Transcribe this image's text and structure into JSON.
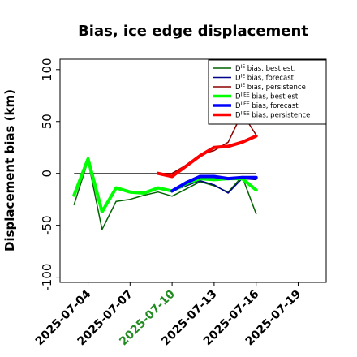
{
  "chart_data": {
    "type": "line",
    "title": "Bias, ice edge displacement",
    "xlabel": "",
    "ylabel": "Displacement bias (km)",
    "ylim": [
      -105,
      110
    ],
    "xlim": [
      "2025-07-02",
      "2025-07-21"
    ],
    "yticks": [
      -100,
      -50,
      0,
      50,
      100
    ],
    "ytick_labels": [
      "-100",
      "-50",
      "0",
      "50",
      "100"
    ],
    "xticks": [
      "2025-07-04",
      "2025-07-07",
      "2025-07-10",
      "2025-07-13",
      "2025-07-16",
      "2025-07-19"
    ],
    "highlighted_xtick": "2025-07-10",
    "highlight_color": "#228b22",
    "zero_line": true,
    "grid": false,
    "legend_position": "top-right",
    "series": [
      {
        "name_prefix": "D",
        "name_sup": "IE",
        "name_suffix": " bias, best est.",
        "color": "#006400",
        "width": 1.5,
        "points": [
          [
            "2025-07-03",
            -30
          ],
          [
            "2025-07-04",
            12
          ],
          [
            "2025-07-05",
            -54
          ],
          [
            "2025-07-06",
            -27
          ],
          [
            "2025-07-07",
            -25
          ],
          [
            "2025-07-08",
            -21
          ],
          [
            "2025-07-09",
            -18
          ],
          [
            "2025-07-10",
            -22
          ],
          [
            "2025-07-11",
            -15
          ],
          [
            "2025-07-12",
            -8
          ],
          [
            "2025-07-13",
            -12
          ],
          [
            "2025-07-14",
            -18
          ],
          [
            "2025-07-15",
            -3
          ],
          [
            "2025-07-16",
            -39
          ]
        ]
      },
      {
        "name_prefix": "D",
        "name_sup": "IE",
        "name_suffix": " bias, forecast",
        "color": "#00008b",
        "width": 1.5,
        "points": [
          [
            "2025-07-10",
            -17
          ],
          [
            "2025-07-11",
            -12
          ],
          [
            "2025-07-12",
            -7
          ],
          [
            "2025-07-13",
            -11
          ],
          [
            "2025-07-14",
            -19
          ],
          [
            "2025-07-15",
            -5
          ],
          [
            "2025-07-16",
            -6
          ]
        ]
      },
      {
        "name_prefix": "D",
        "name_sup": "IE",
        "name_suffix": " bias, persistence",
        "color": "#8b0000",
        "width": 1.5,
        "points": [
          [
            "2025-07-09",
            0
          ],
          [
            "2025-07-10",
            0
          ],
          [
            "2025-07-11",
            8
          ],
          [
            "2025-07-12",
            18
          ],
          [
            "2025-07-13",
            22
          ],
          [
            "2025-07-14",
            30
          ],
          [
            "2025-07-15",
            58
          ],
          [
            "2025-07-16",
            37
          ]
        ]
      },
      {
        "name_prefix": "D",
        "name_sup": "IIEE",
        "name_suffix": " bias, best est.",
        "color": "#00ff00",
        "width": 4,
        "points": [
          [
            "2025-07-03",
            -21
          ],
          [
            "2025-07-04",
            14
          ],
          [
            "2025-07-05",
            -37
          ],
          [
            "2025-07-06",
            -14
          ],
          [
            "2025-07-07",
            -18
          ],
          [
            "2025-07-08",
            -19
          ],
          [
            "2025-07-09",
            -14
          ],
          [
            "2025-07-10",
            -17
          ],
          [
            "2025-07-11",
            -10
          ],
          [
            "2025-07-12",
            -5
          ],
          [
            "2025-07-13",
            -6
          ],
          [
            "2025-07-14",
            -5
          ],
          [
            "2025-07-15",
            -5
          ],
          [
            "2025-07-16",
            -16
          ]
        ]
      },
      {
        "name_prefix": "D",
        "name_sup": "IIEE",
        "name_suffix": " bias, forecast",
        "color": "#0000ff",
        "width": 4,
        "points": [
          [
            "2025-07-10",
            -17
          ],
          [
            "2025-07-11",
            -9
          ],
          [
            "2025-07-12",
            -3
          ],
          [
            "2025-07-13",
            -3
          ],
          [
            "2025-07-14",
            -5
          ],
          [
            "2025-07-15",
            -4
          ],
          [
            "2025-07-16",
            -4
          ]
        ]
      },
      {
        "name_prefix": "D",
        "name_sup": "IIEE",
        "name_suffix": " bias, persistence",
        "color": "#ff0000",
        "width": 4,
        "points": [
          [
            "2025-07-09",
            0
          ],
          [
            "2025-07-10",
            -3
          ],
          [
            "2025-07-11",
            7
          ],
          [
            "2025-07-12",
            17
          ],
          [
            "2025-07-13",
            25
          ],
          [
            "2025-07-14",
            26
          ],
          [
            "2025-07-15",
            30
          ],
          [
            "2025-07-16",
            36
          ]
        ]
      }
    ]
  }
}
